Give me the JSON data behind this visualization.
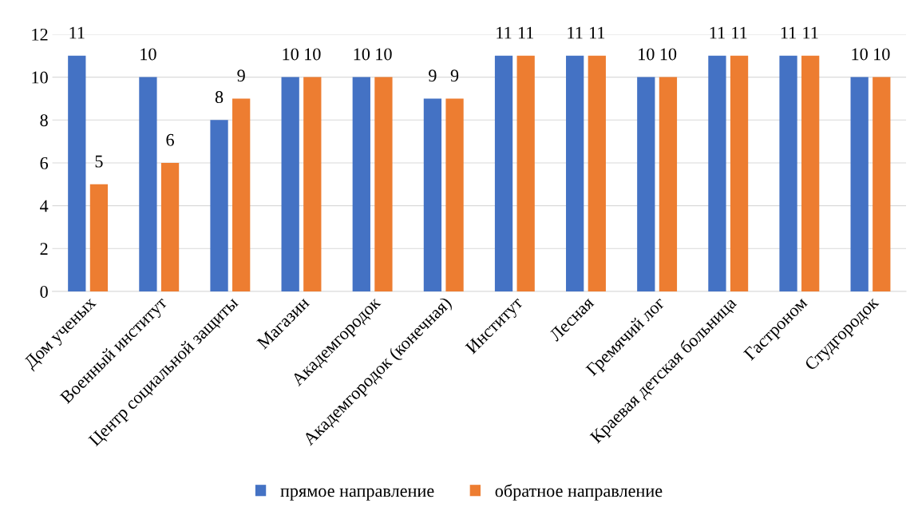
{
  "chart_data": {
    "type": "bar",
    "categories": [
      "Дом ученых",
      "Военный институт",
      "Центр социальной защиты",
      "Магазин",
      "Академгородок",
      "Академгородок (конечная)",
      "Институт",
      "Лесная",
      "Гремячий лог",
      "Краевая детская больница",
      "Гастроном",
      "Студгородок"
    ],
    "series": [
      {
        "name": "прямое направление",
        "color": "#4472c4",
        "values": [
          11,
          10,
          8,
          10,
          10,
          9,
          11,
          11,
          10,
          11,
          11,
          10
        ]
      },
      {
        "name": "обратное направление",
        "color": "#ed7d31",
        "values": [
          5,
          6,
          9,
          10,
          10,
          9,
          11,
          11,
          10,
          11,
          11,
          10
        ]
      }
    ],
    "ylim": [
      0,
      12
    ],
    "yticks": [
      0,
      2,
      4,
      6,
      8,
      10,
      12
    ],
    "grid": "y",
    "legend": "bottom",
    "data_labels": true
  }
}
